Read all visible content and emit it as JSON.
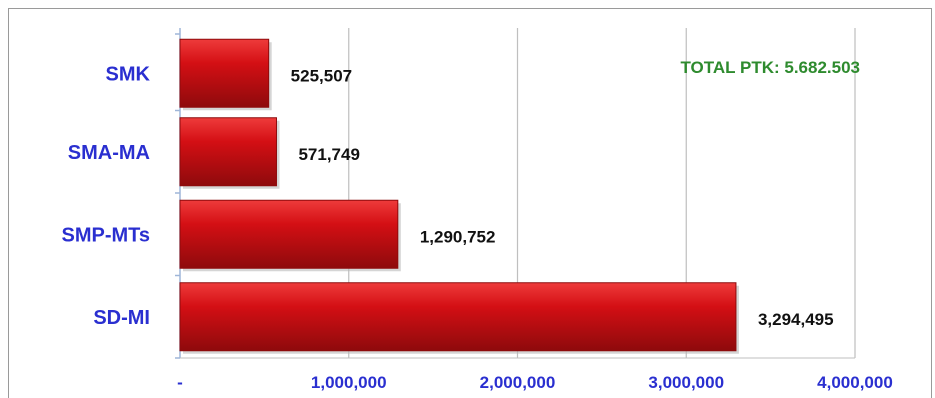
{
  "colors": {
    "bar": "#d40f14",
    "bar_dark": "#8e0a0c",
    "bar_light": "#ee3b3b",
    "category_text": "#2a2fd0",
    "tick_text": "#2a2fd0",
    "annotation_text": "#2e8b2e",
    "grid": "#bfbfbf",
    "data_label_text": "#111111"
  },
  "chart_data": {
    "type": "bar",
    "orientation": "horizontal",
    "categories": [
      "SMK",
      "SMA-MA",
      "SMP-MTs",
      "SD-MI"
    ],
    "values": [
      525507,
      571749,
      1290752,
      3294495
    ],
    "data_labels": [
      "525,507",
      "571,749",
      "1,290,752",
      "3,294,495"
    ],
    "xlim": [
      0,
      4000000
    ],
    "x_ticks": [
      0,
      1000000,
      2000000,
      3000000,
      4000000
    ],
    "x_tick_labels": [
      "-",
      "1,000,000",
      "2,000,000",
      "3,000,000",
      "4,000,000"
    ],
    "grid": "vertical",
    "legend": "none",
    "annotation": "TOTAL PTK: 5.682.503"
  }
}
